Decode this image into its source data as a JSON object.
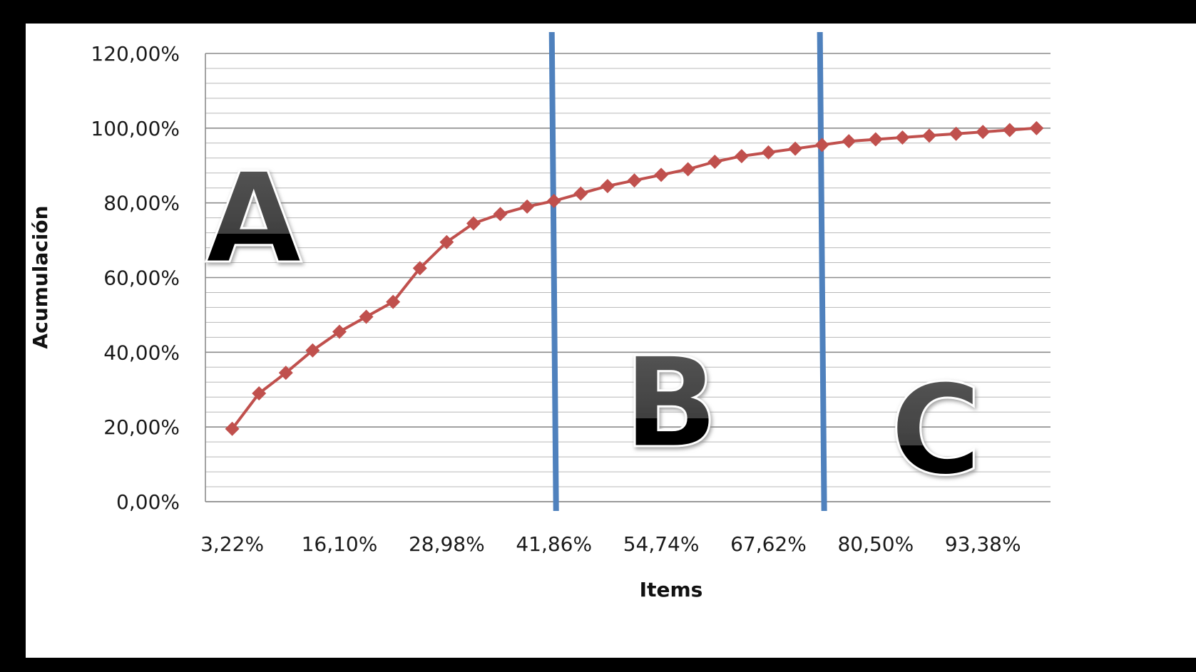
{
  "chart_data": {
    "type": "line",
    "title": "",
    "xlabel": "Items",
    "ylabel": "Acumulación",
    "ylim": [
      0,
      120
    ],
    "yticks": [
      "0,00%",
      "20,00%",
      "40,00%",
      "60,00%",
      "80,00%",
      "100,00%",
      "120,00%"
    ],
    "xtick_labels": [
      "3,22%",
      "16,10%",
      "28,98%",
      "41,86%",
      "54,74%",
      "67,62%",
      "80,50%",
      "93,38%"
    ],
    "grid": true,
    "legend": "none",
    "series": [
      {
        "color": "#c0504d",
        "x": [
          3.22,
          6.44,
          9.66,
          12.88,
          16.1,
          19.32,
          22.54,
          25.76,
          28.98,
          32.2,
          35.42,
          38.64,
          41.86,
          45.08,
          48.3,
          51.52,
          54.74,
          57.96,
          61.18,
          64.4,
          67.62,
          70.84,
          74.06,
          77.28,
          80.5,
          83.72,
          86.94,
          90.16,
          93.38,
          96.6,
          99.82
        ],
        "y": [
          19.5,
          29.0,
          34.5,
          40.5,
          45.5,
          49.5,
          53.5,
          62.5,
          69.5,
          74.5,
          77.0,
          79.0,
          80.5,
          82.5,
          84.5,
          86.0,
          87.5,
          89.0,
          91.0,
          92.5,
          93.5,
          94.5,
          95.5,
          96.5,
          97.0,
          97.5,
          98.0,
          98.5,
          99.0,
          99.5,
          100.0
        ]
      }
    ],
    "dividers": {
      "color": "#4f81bd",
      "x": [
        41.86,
        74.06
      ]
    },
    "zone_labels": [
      "A",
      "B",
      "C"
    ]
  }
}
